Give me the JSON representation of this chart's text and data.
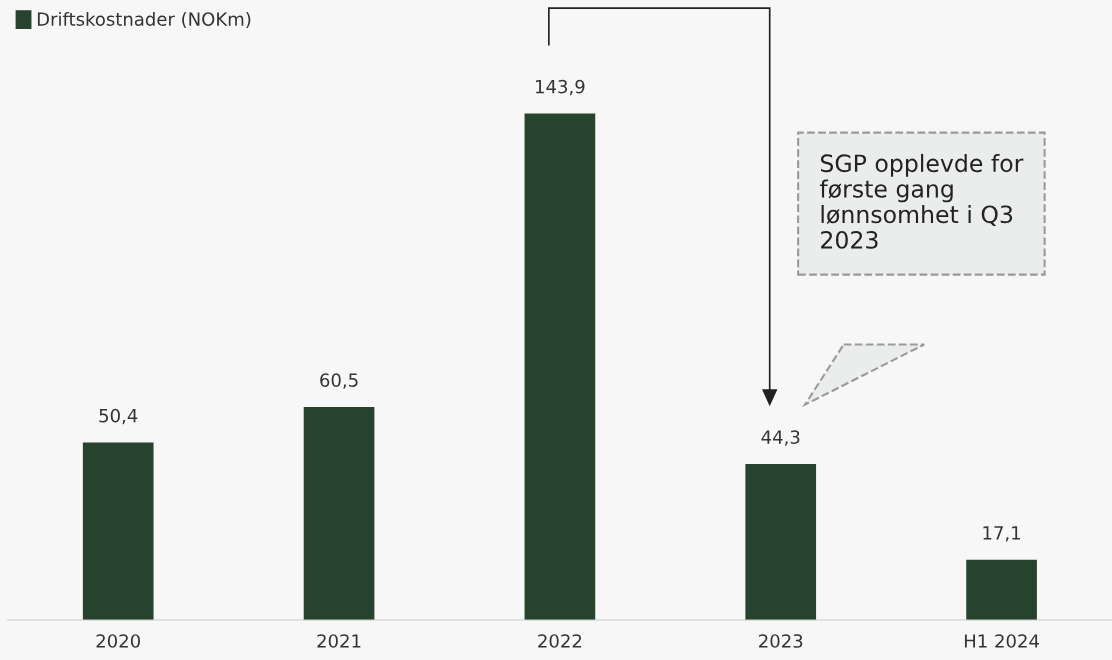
{
  "chart_data": {
    "type": "bar",
    "categories": [
      "2020",
      "2021",
      "2022",
      "2023",
      "H1 2024"
    ],
    "series": [
      {
        "name": "Driftskostnader (NOKm)",
        "color": "#27432e",
        "values": [
          50.4,
          60.5,
          143.9,
          44.3,
          17.1
        ],
        "value_labels": [
          "50,4",
          "60,5",
          "143,9",
          "44,3",
          "17,1"
        ]
      }
    ],
    "annotations": [
      "SGP opplevde for\nførste gang\nlønnsomhet i Q3\n2023"
    ],
    "legend": "top left"
  }
}
